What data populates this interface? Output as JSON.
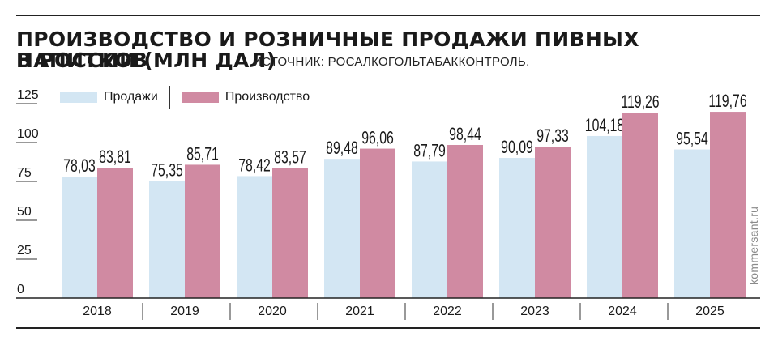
{
  "title_line1": "ПРОИЗВОДСТВО И РОЗНИЧНЫЕ ПРОДАЖИ ПИВНЫХ НАПИТКОВ",
  "title_line2": "В РОССИИ (МЛН ДАЛ)",
  "source": "ИСТОЧНИК: РОСАЛКОГОЛЬТАБАККОНТРОЛЬ.",
  "watermark": "kommersant.ru",
  "colors": {
    "sales": "#d3e6f3",
    "production": "#d08aa2"
  },
  "chart_data": {
    "type": "bar",
    "title": "ПРОИЗВОДСТВО И РОЗНИЧНЫЕ ПРОДАЖИ ПИВНЫХ НАПИТКОВ В РОССИИ (МЛН ДАЛ)",
    "categories": [
      "2018",
      "2019",
      "2020",
      "2021",
      "2022",
      "2023",
      "2024",
      "2025"
    ],
    "series": [
      {
        "name": "Продажи",
        "values": [
          78.03,
          75.35,
          78.42,
          89.48,
          87.79,
          90.09,
          104.18,
          95.54
        ],
        "labels": [
          "78,03",
          "75,35",
          "78,42",
          "89,48",
          "87,79",
          "90,09",
          "104,18",
          "95,54"
        ]
      },
      {
        "name": "Производство",
        "values": [
          83.81,
          85.71,
          83.57,
          96.06,
          98.44,
          97.33,
          119.26,
          119.76
        ],
        "labels": [
          "83,81",
          "85,71",
          "83,57",
          "96,06",
          "98,44",
          "97,33",
          "119,26",
          "119,76"
        ]
      }
    ],
    "yticks": [
      "0",
      "25",
      "50",
      "75",
      "100",
      "125"
    ],
    "ylim": [
      0,
      125
    ],
    "legend_position": "top-left",
    "grid": false
  }
}
